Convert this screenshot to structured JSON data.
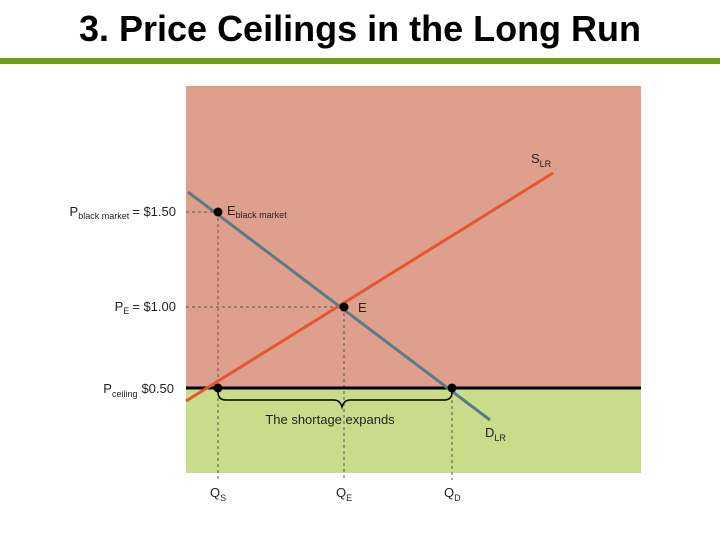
{
  "title": "3. Price Ceilings in the Long Run",
  "colors": {
    "title_rule": "#6f9a1a",
    "upper_region": "#dea08d",
    "lower_region": "#c9dc8a",
    "supply": "#e4572e",
    "demand": "#5b7a88",
    "ceiling": "#000000"
  },
  "labels": {
    "supply": {
      "main": "S",
      "sub": "LR"
    },
    "demand": {
      "main": "D",
      "sub": "LR"
    },
    "black_market_point": {
      "main": "E",
      "sub": "black market"
    },
    "equilibrium_point": "E",
    "p_black_market": {
      "main": "P",
      "sub": "black market",
      "value": "= $1.50"
    },
    "p_equilibrium": {
      "main": "P",
      "sub": "E",
      "value": "= $1.00"
    },
    "p_ceiling": {
      "main": "P",
      "sub": "ceiling",
      "value": "$0.50"
    },
    "shortage": "The shortage expands",
    "qs": {
      "main": "Q",
      "sub": "S"
    },
    "qe": {
      "main": "Q",
      "sub": "E"
    },
    "qd": {
      "main": "Q",
      "sub": "D"
    }
  }
}
